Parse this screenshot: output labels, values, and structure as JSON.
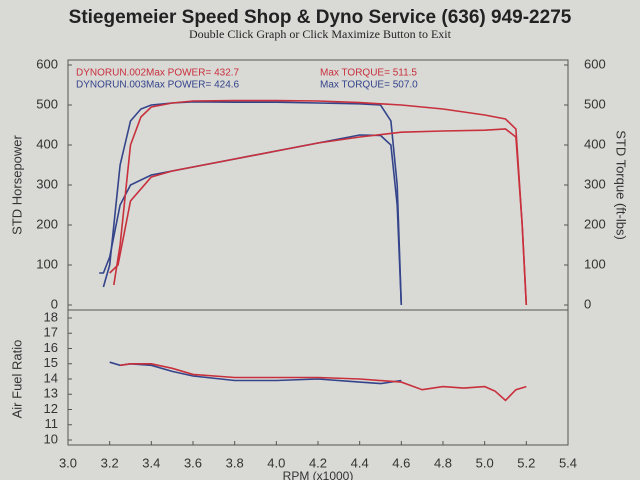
{
  "header": {
    "title": "Stiegemeier Speed Shop & Dyno Service (636) 949-2275",
    "subtitle": "Double Click Graph or Click Maximize Button to Exit"
  },
  "chart_data": [
    {
      "type": "line",
      "ylabel": "STD Horsepower",
      "y2label": "STD Torque (ft-lbs)",
      "xlim": [
        3.0,
        5.4
      ],
      "ylim": [
        0,
        600
      ],
      "yticks": [
        0,
        100,
        200,
        300,
        400,
        500,
        600
      ],
      "y2lim": [
        0,
        600
      ],
      "y2ticks": [
        0,
        100,
        200,
        300,
        400,
        500,
        600
      ],
      "runs": [
        {
          "name": "DYNORUN.002",
          "color": "#c8303c",
          "power": "Max POWER= 432.7",
          "torque": "Max TORQUE= 511.5"
        },
        {
          "name": "DYNORUN.003",
          "color": "#34448a",
          "power": "Max POWER= 424.6",
          "torque": "Max TORQUE= 507.0"
        }
      ],
      "series": [
        {
          "color": "#34448a",
          "axis": "y2",
          "x": [
            3.17,
            3.2,
            3.25,
            3.3,
            3.35,
            3.4,
            3.5,
            3.6,
            3.8,
            4.0,
            4.2,
            4.4,
            4.5,
            4.55,
            4.58,
            4.6
          ],
          "values": [
            45,
            100,
            350,
            460,
            490,
            500,
            505,
            508,
            507,
            507,
            505,
            503,
            500,
            460,
            300,
            0
          ]
        },
        {
          "color": "#34448a",
          "x": [
            3.15,
            3.17,
            3.2,
            3.25,
            3.3,
            3.4,
            3.5,
            3.6,
            3.8,
            4.0,
            4.2,
            4.4,
            4.5,
            4.55,
            4.58,
            4.6
          ],
          "values": [
            80,
            80,
            120,
            250,
            300,
            325,
            335,
            345,
            365,
            385,
            405,
            425,
            424,
            400,
            250,
            0
          ]
        },
        {
          "color": "#c8303c",
          "axis": "y2",
          "x": [
            3.22,
            3.25,
            3.3,
            3.35,
            3.4,
            3.5,
            3.6,
            3.8,
            4.0,
            4.2,
            4.4,
            4.6,
            4.8,
            5.0,
            5.1,
            5.15,
            5.18,
            5.2
          ],
          "values": [
            50,
            150,
            400,
            470,
            495,
            505,
            510,
            511,
            511,
            510,
            506,
            500,
            490,
            475,
            465,
            440,
            200,
            0
          ]
        },
        {
          "color": "#c8303c",
          "x": [
            3.2,
            3.24,
            3.3,
            3.4,
            3.5,
            3.6,
            3.8,
            4.0,
            4.2,
            4.4,
            4.6,
            4.8,
            5.0,
            5.1,
            5.15,
            5.18,
            5.2
          ],
          "values": [
            80,
            100,
            260,
            320,
            335,
            345,
            365,
            385,
            405,
            420,
            432,
            435,
            437,
            440,
            420,
            200,
            0
          ]
        }
      ]
    },
    {
      "type": "line",
      "ylabel": "Air Fuel Ratio",
      "xlabel": "RPM (x1000)",
      "xlim": [
        3.0,
        5.4
      ],
      "xticks": [
        {
          "value": 3,
          "label": "3.0"
        },
        3.2,
        3.4,
        3.6,
        3.8,
        {
          "value": 4,
          "label": "4.0"
        },
        4.2,
        4.4,
        4.6,
        4.8,
        {
          "value": 5,
          "label": "5.0"
        },
        5.2,
        5.4
      ],
      "ylim": [
        10,
        18
      ],
      "yticks": [
        10,
        11,
        12,
        13,
        14,
        15,
        16,
        17,
        18
      ],
      "series": [
        {
          "color": "#34448a",
          "x": [
            3.2,
            3.25,
            3.3,
            3.4,
            3.5,
            3.6,
            3.8,
            4.0,
            4.2,
            4.4,
            4.5,
            4.6
          ],
          "values": [
            15.1,
            14.9,
            15.0,
            14.9,
            14.5,
            14.2,
            13.9,
            13.9,
            14.0,
            13.8,
            13.7,
            13.9
          ]
        },
        {
          "color": "#c8303c",
          "x": [
            3.25,
            3.3,
            3.4,
            3.5,
            3.6,
            3.8,
            4.0,
            4.2,
            4.4,
            4.6,
            4.7,
            4.8,
            4.9,
            5.0,
            5.05,
            5.1,
            5.15,
            5.2
          ],
          "values": [
            14.9,
            15.0,
            15.0,
            14.7,
            14.3,
            14.1,
            14.1,
            14.1,
            14.0,
            13.8,
            13.3,
            13.5,
            13.4,
            13.5,
            13.2,
            12.6,
            13.3,
            13.5
          ]
        }
      ]
    }
  ]
}
